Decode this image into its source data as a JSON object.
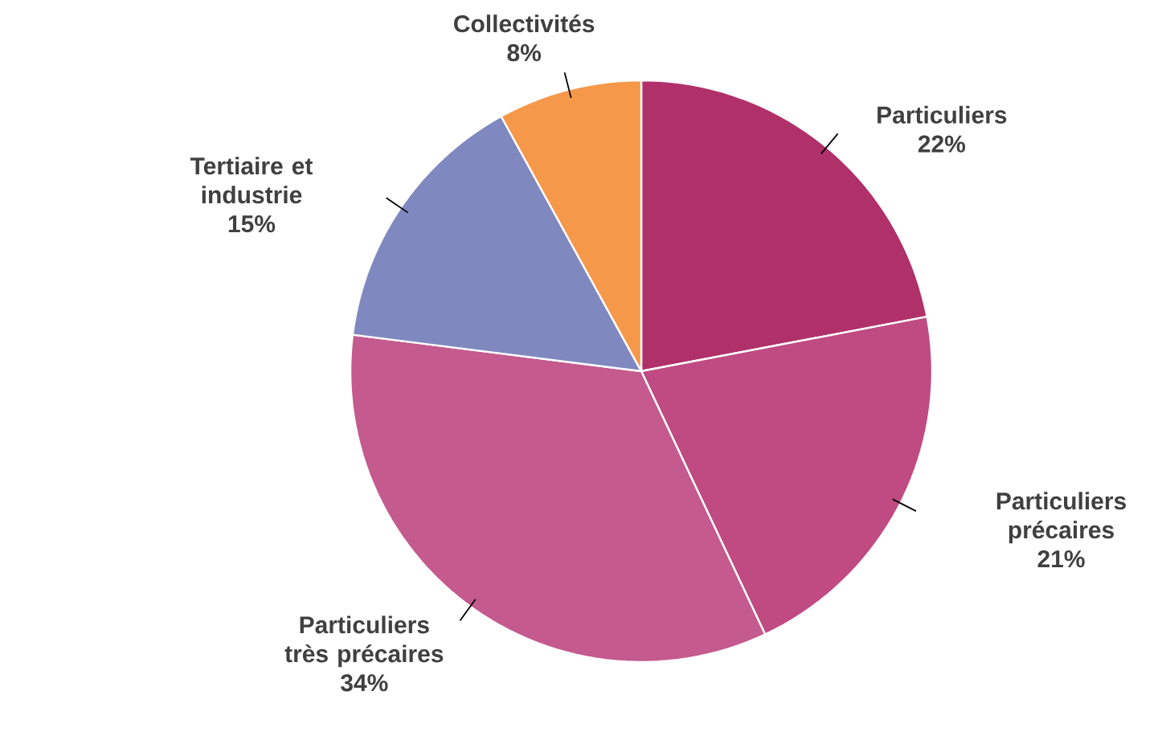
{
  "chart_data": {
    "type": "pie",
    "categories": [
      "Particuliers",
      "Particuliers précaires",
      "Particuliers très précaires",
      "Tertiaire et industrie",
      "Collectivités"
    ],
    "values": [
      22,
      21,
      34,
      15,
      8
    ],
    "value_labels": [
      "22%",
      "21%",
      "34%",
      "15%",
      "8%"
    ],
    "colors": [
      "#b0306a",
      "#c04a82",
      "#c45a8e",
      "#8088c0",
      "#f5984a"
    ]
  }
}
